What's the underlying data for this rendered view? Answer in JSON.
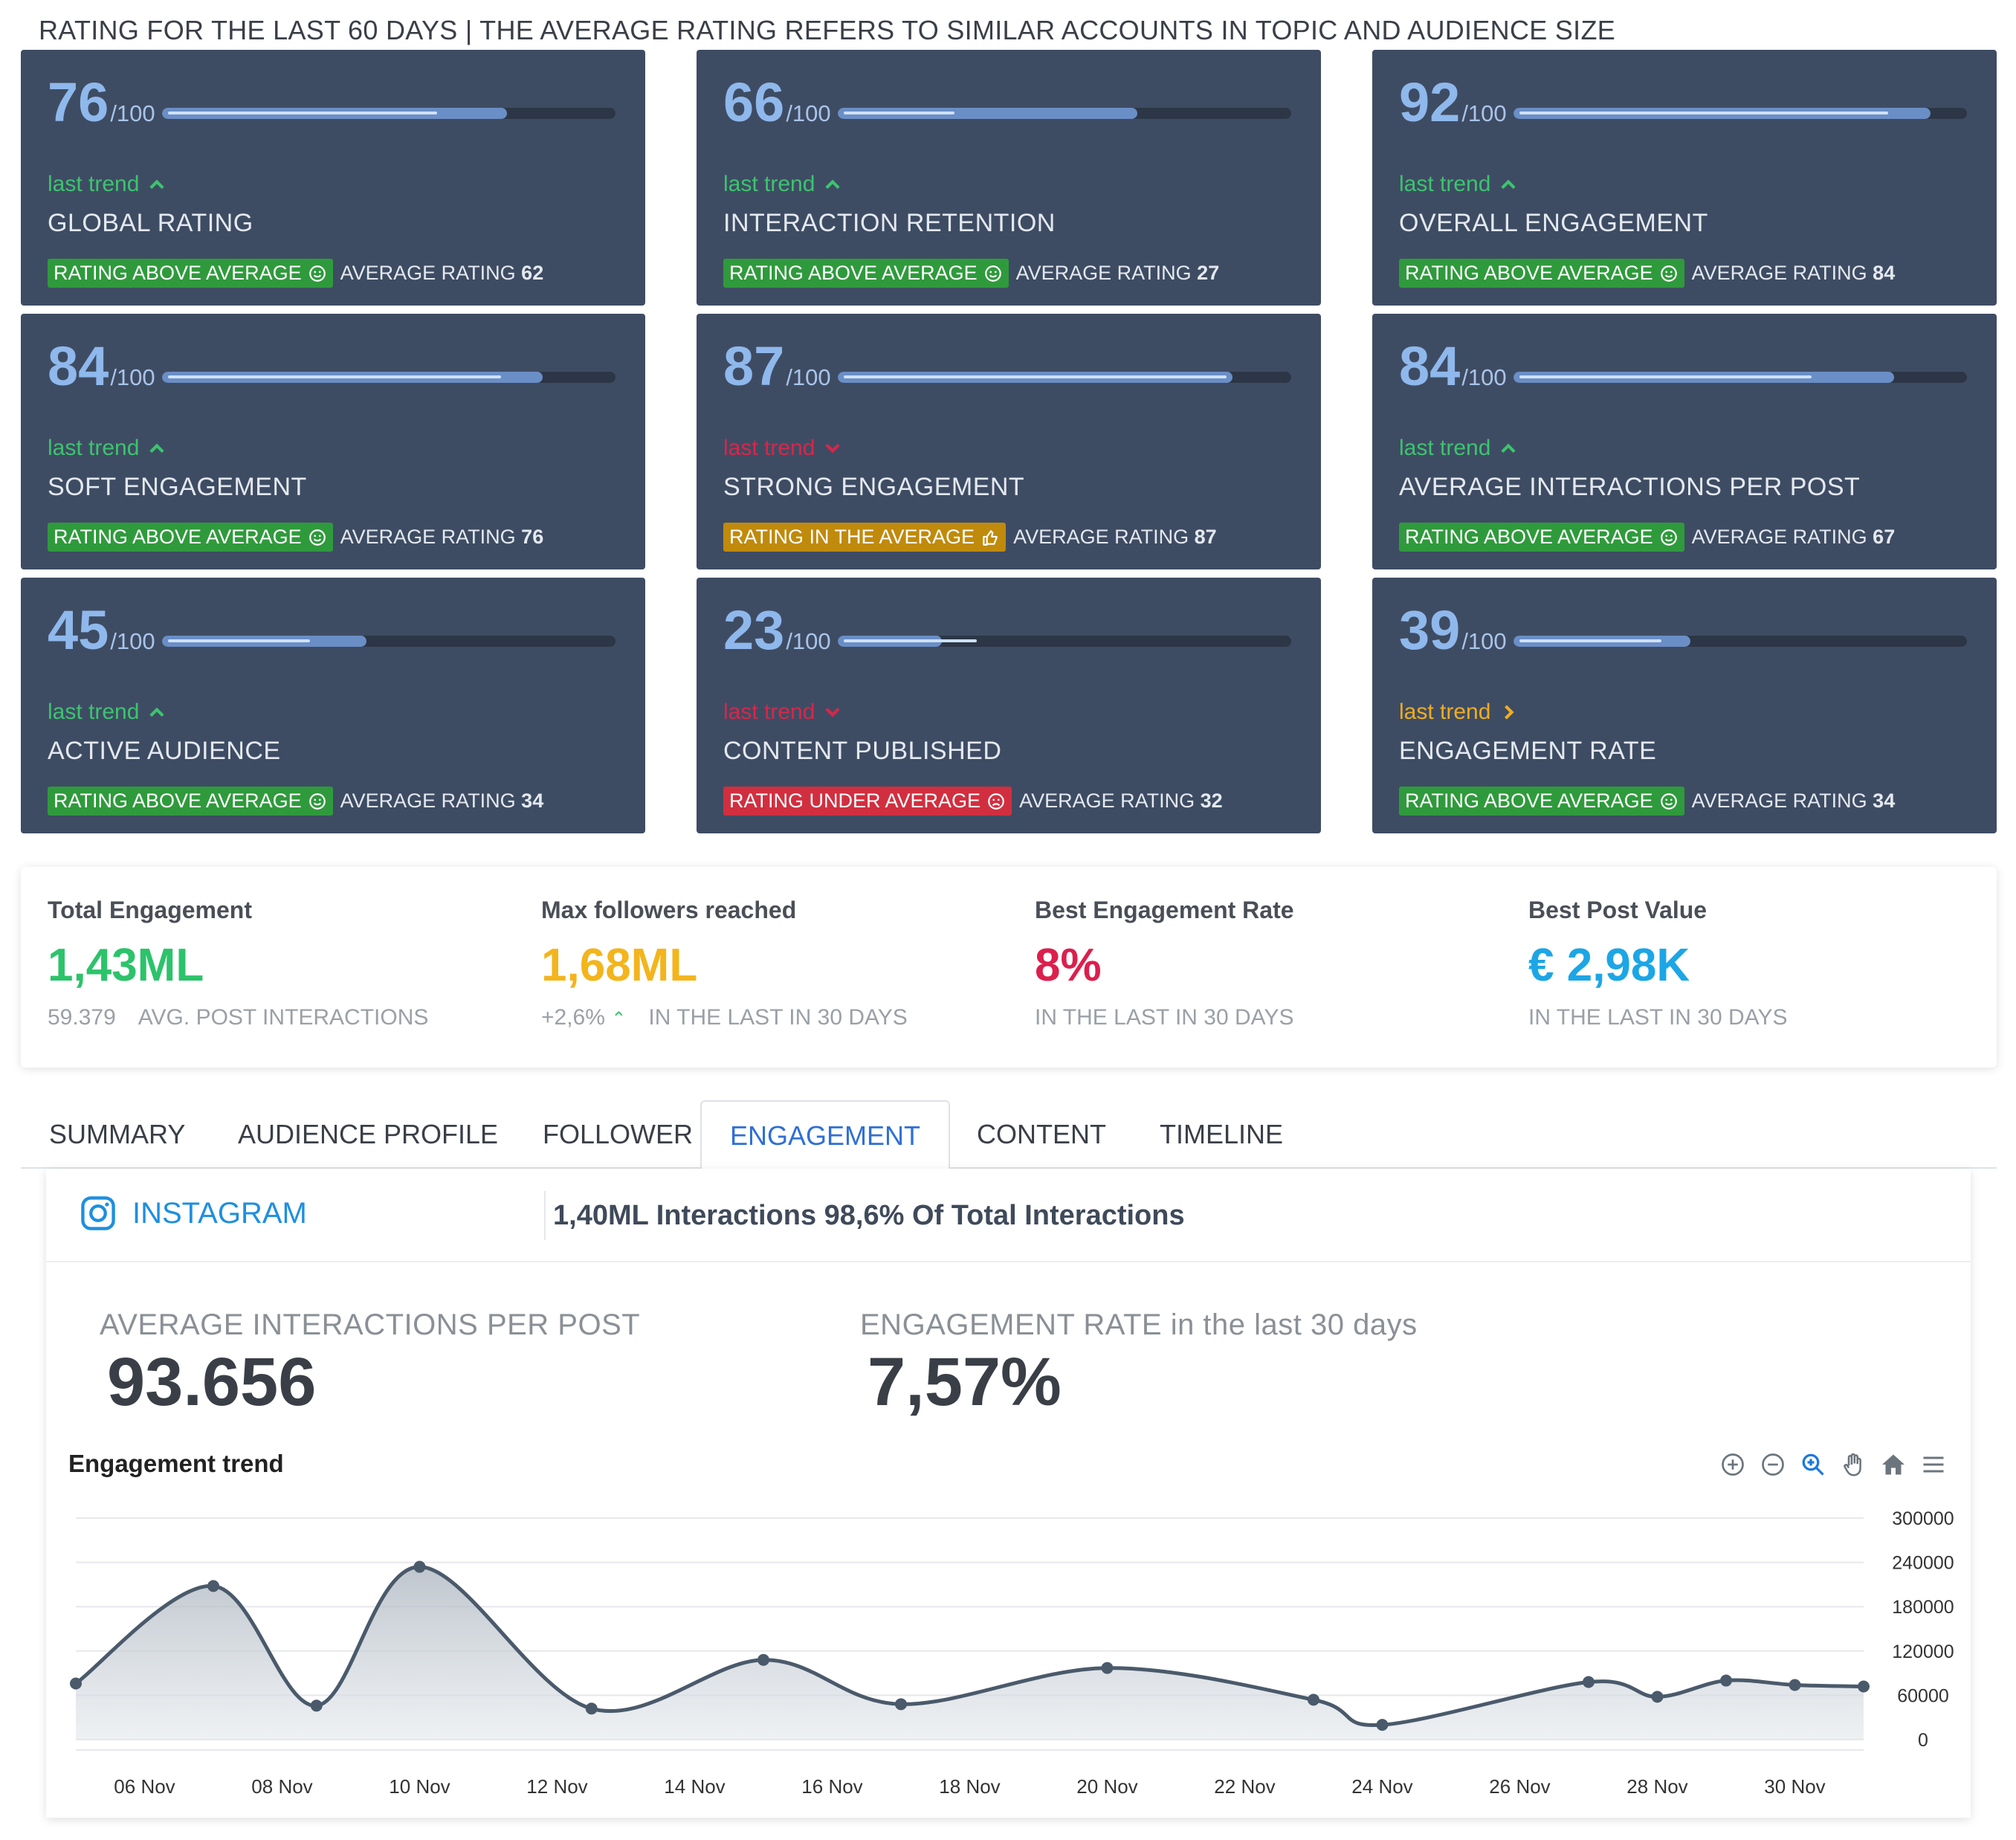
{
  "header": {
    "title": "RATING FOR THE LAST 60 DAYS | THE AVERAGE RATING REFERS TO SIMILAR ACCOUNTS IN TOPIC AND AUDIENCE SIZE"
  },
  "cards": [
    {
      "score": "76",
      "den": "/100",
      "fill": 0.76,
      "avg": 0.62,
      "trend": "last trend",
      "trend_dir": "up",
      "metric": "GLOBAL RATING",
      "badge": "RATING ABOVE AVERAGE",
      "badge_type": "above",
      "avg_label": "AVERAGE RATING",
      "avg_value": "62"
    },
    {
      "score": "66",
      "den": "/100",
      "fill": 0.66,
      "avg": 0.27,
      "trend": "last trend",
      "trend_dir": "up",
      "metric": "INTERACTION RETENTION",
      "badge": "RATING ABOVE AVERAGE",
      "badge_type": "above",
      "avg_label": "AVERAGE RATING",
      "avg_value": "27"
    },
    {
      "score": "92",
      "den": "/100",
      "fill": 0.92,
      "avg": 0.84,
      "trend": "last trend",
      "trend_dir": "up",
      "metric": "OVERALL ENGAGEMENT",
      "badge": "RATING ABOVE AVERAGE",
      "badge_type": "above",
      "avg_label": "AVERAGE RATING",
      "avg_value": "84"
    },
    {
      "score": "84",
      "den": "/100",
      "fill": 0.84,
      "avg": 0.76,
      "trend": "last trend",
      "trend_dir": "up",
      "metric": "SOFT ENGAGEMENT",
      "badge": "RATING ABOVE AVERAGE",
      "badge_type": "above",
      "avg_label": "AVERAGE RATING",
      "avg_value": "76"
    },
    {
      "score": "87",
      "den": "/100",
      "fill": 0.87,
      "avg": 0.87,
      "trend": "last trend",
      "trend_dir": "down",
      "metric": "STRONG ENGAGEMENT",
      "badge": "RATING IN THE AVERAGE",
      "badge_type": "average",
      "avg_label": "AVERAGE RATING",
      "avg_value": "87"
    },
    {
      "score": "84",
      "den": "/100",
      "fill": 0.84,
      "avg": 0.67,
      "trend": "last trend",
      "trend_dir": "up",
      "metric": "AVERAGE INTERACTIONS PER POST",
      "badge": "RATING ABOVE AVERAGE",
      "badge_type": "above",
      "avg_label": "AVERAGE RATING",
      "avg_value": "67"
    },
    {
      "score": "45",
      "den": "/100",
      "fill": 0.45,
      "avg": 0.34,
      "trend": "last trend",
      "trend_dir": "up",
      "metric": "ACTIVE AUDIENCE",
      "badge": "RATING ABOVE AVERAGE",
      "badge_type": "above",
      "avg_label": "AVERAGE RATING",
      "avg_value": "34"
    },
    {
      "score": "23",
      "den": "/100",
      "fill": 0.23,
      "avg": 0.32,
      "trend": "last trend",
      "trend_dir": "down",
      "metric": "CONTENT PUBLISHED",
      "badge": "RATING UNDER AVERAGE",
      "badge_type": "under",
      "avg_label": "AVERAGE RATING",
      "avg_value": "32"
    },
    {
      "score": "39",
      "den": "/100",
      "fill": 0.39,
      "avg": 0.34,
      "trend": "last trend",
      "trend_dir": "right",
      "metric": "ENGAGEMENT RATE",
      "badge": "RATING ABOVE AVERAGE",
      "badge_type": "above",
      "avg_label": "AVERAGE RATING",
      "avg_value": "34"
    }
  ],
  "stats": [
    {
      "label": "Total Engagement",
      "value": "1,43ML",
      "color": "#2cc36b",
      "sub_a": "59.379",
      "sub_b": "AVG. POST INTERACTIONS"
    },
    {
      "label": "Max followers reached",
      "value": "1,68ML",
      "color": "#f3b51d",
      "sub_a": "+2,6%",
      "sub_b": "IN THE LAST IN 30 DAYS"
    },
    {
      "label": "Best Engagement Rate",
      "value": "8%",
      "color": "#dc1f4d",
      "sub_a": "",
      "sub_b": "IN THE LAST IN 30 DAYS"
    },
    {
      "label": "Best Post Value",
      "value": "€ 2,98K",
      "color": "#1ca6e6",
      "sub_a": "",
      "sub_b": "IN THE LAST IN 30 DAYS"
    }
  ],
  "tabs": [
    "SUMMARY",
    "AUDIENCE PROFILE",
    "FOLLOWER",
    "ENGAGEMENT",
    "CONTENT",
    "TIMELINE"
  ],
  "active_tab": "ENGAGEMENT",
  "panel": {
    "network": "INSTAGRAM",
    "headline": "1,40ML Interactions 98,6% Of Total Interactions",
    "kpi1_label": "AVERAGE INTERACTIONS PER POST",
    "kpi1_value": "93.656",
    "kpi2_label": "ENGAGEMENT RATE in the last 30 days",
    "kpi2_value": "7,57%",
    "chart_title": "Engagement trend",
    "toolbar_icons": [
      "zoom-in-icon",
      "zoom-out-icon",
      "selection-zoom-icon",
      "pan-icon",
      "home-icon",
      "menu-icon"
    ]
  },
  "colors": {
    "card_bg": "#3e4c63",
    "above": "#2f9a3c",
    "average": "#c08a0c",
    "under": "#d12f3f",
    "trend_up": "#3cc46e",
    "trend_down": "#d8264a",
    "trend_flat": "#f0ad20"
  },
  "chart_data": {
    "type": "area",
    "title": "Engagement trend",
    "x": [
      "05 Nov",
      "06 Nov",
      "07 Nov",
      "08 Nov",
      "09 Nov",
      "10 Nov",
      "11 Nov",
      "12 Nov",
      "13 Nov",
      "14 Nov",
      "15 Nov",
      "16 Nov",
      "17 Nov",
      "18 Nov",
      "19 Nov",
      "20 Nov",
      "21 Nov",
      "22 Nov",
      "23 Nov",
      "24 Nov",
      "25 Nov",
      "26 Nov",
      "27 Nov",
      "28 Nov",
      "29 Nov",
      "30 Nov",
      "01 Dec"
    ],
    "x_ticks": [
      "06 Nov",
      "08 Nov",
      "10 Nov",
      "12 Nov",
      "14 Nov",
      "16 Nov",
      "18 Nov",
      "20 Nov",
      "22 Nov",
      "24 Nov",
      "26 Nov",
      "28 Nov",
      "30 Nov"
    ],
    "points": [
      {
        "x": "05 Nov",
        "y": 76000
      },
      {
        "x": "07 Nov",
        "y": 208000
      },
      {
        "x": "08.5 Nov",
        "y": 46000
      },
      {
        "x": "10 Nov",
        "y": 234000
      },
      {
        "x": "12.5 Nov",
        "y": 42000
      },
      {
        "x": "15 Nov",
        "y": 108000
      },
      {
        "x": "17 Nov",
        "y": 48000
      },
      {
        "x": "20 Nov",
        "y": 97000
      },
      {
        "x": "23 Nov",
        "y": 54000
      },
      {
        "x": "24 Nov",
        "y": 20000
      },
      {
        "x": "27 Nov",
        "y": 78000
      },
      {
        "x": "28 Nov",
        "y": 58000
      },
      {
        "x": "29 Nov",
        "y": 80000
      },
      {
        "x": "30 Nov",
        "y": 74000
      },
      {
        "x": "01 Dec",
        "y": 72000
      }
    ],
    "ylim": [
      0,
      300000
    ],
    "y_ticks": [
      0,
      60000,
      120000,
      180000,
      240000,
      300000
    ],
    "y_axis_side": "right",
    "grid": true
  }
}
